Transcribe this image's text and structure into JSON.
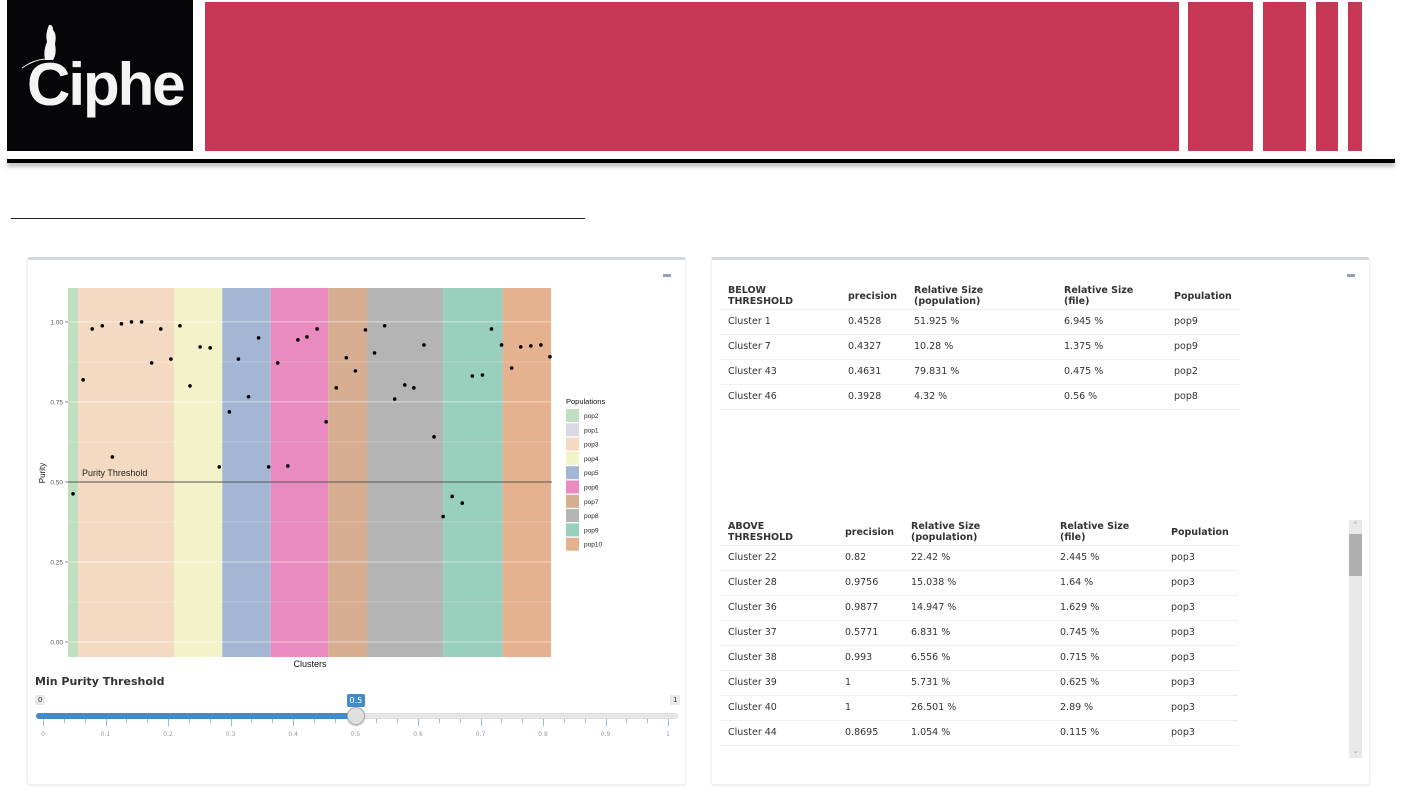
{
  "header": {
    "logo_text": "Ciphe",
    "brand_color": "#c73654",
    "logo_bg": "#060608"
  },
  "left_panel": {
    "collapse_icon": "minus-icon",
    "slider": {
      "label": "Min Purity Threshold",
      "min": 0,
      "max": 1,
      "value": 0.5,
      "min_label": "0",
      "max_label": "1",
      "value_label": "0.5",
      "tick_labels": [
        "0",
        "0.1",
        "0.2",
        "0.3",
        "0.4",
        "0.5",
        "0.6",
        "0.7",
        "0.8",
        "0.9",
        "1"
      ],
      "accent": "#428bca"
    }
  },
  "chart_data": {
    "type": "scatter",
    "title": "",
    "xlabel": "Clusters",
    "ylabel": "Purity",
    "ylim": [
      -0.047,
      1.106
    ],
    "yticks": [
      0.0,
      0.25,
      0.5,
      0.75,
      1.0
    ],
    "ytick_labels": [
      "0.00",
      "0.25",
      "0.50",
      "0.75",
      "1.00"
    ],
    "grid": true,
    "threshold": {
      "value": 0.5,
      "label": "Purity Threshold"
    },
    "legend": {
      "title": "Populations",
      "placement": "right",
      "entries": [
        {
          "name": "pop2",
          "color": "#bfdfbf"
        },
        {
          "name": "pop1",
          "color": "#dcd7e7"
        },
        {
          "name": "pop3",
          "color": "#f4dac3"
        },
        {
          "name": "pop4",
          "color": "#f2f3c9"
        },
        {
          "name": "pop5",
          "color": "#a3b7d4"
        },
        {
          "name": "pop6",
          "color": "#e98ac0"
        },
        {
          "name": "pop7",
          "color": "#d8ae92"
        },
        {
          "name": "pop8",
          "color": "#b4b4b4"
        },
        {
          "name": "pop9",
          "color": "#99cfbd"
        },
        {
          "name": "pop10",
          "color": "#e5b18e"
        }
      ]
    },
    "bands": [
      {
        "population": "pop2",
        "start": 0,
        "end": 1
      },
      {
        "population": "pop3",
        "start": 1,
        "end": 10.5
      },
      {
        "population": "pop4",
        "start": 10.5,
        "end": 15.3
      },
      {
        "population": "pop5",
        "start": 15.3,
        "end": 20.1
      },
      {
        "population": "pop6",
        "start": 20.1,
        "end": 25.8
      },
      {
        "population": "pop7",
        "start": 25.8,
        "end": 29.7
      },
      {
        "population": "pop8",
        "start": 29.7,
        "end": 37.2
      },
      {
        "population": "pop9",
        "start": 37.2,
        "end": 43.1
      },
      {
        "population": "pop10",
        "start": 43.1,
        "end": 47.9
      }
    ],
    "x_count": 48,
    "points": [
      {
        "x": 0.5,
        "y": 0.463
      },
      {
        "x": 1.5,
        "y": 0.819
      },
      {
        "x": 2.4,
        "y": 0.978
      },
      {
        "x": 3.4,
        "y": 0.988
      },
      {
        "x": 4.4,
        "y": 0.578
      },
      {
        "x": 5.3,
        "y": 0.994
      },
      {
        "x": 6.3,
        "y": 1.0
      },
      {
        "x": 7.3,
        "y": 1.0
      },
      {
        "x": 8.3,
        "y": 0.872
      },
      {
        "x": 9.2,
        "y": 0.978
      },
      {
        "x": 10.2,
        "y": 0.884
      },
      {
        "x": 11.1,
        "y": 0.988
      },
      {
        "x": 12.1,
        "y": 0.8
      },
      {
        "x": 13.1,
        "y": 0.922
      },
      {
        "x": 14.1,
        "y": 0.919
      },
      {
        "x": 15.0,
        "y": 0.547
      },
      {
        "x": 16.0,
        "y": 0.719
      },
      {
        "x": 16.9,
        "y": 0.884
      },
      {
        "x": 17.9,
        "y": 0.766
      },
      {
        "x": 18.9,
        "y": 0.95
      },
      {
        "x": 19.9,
        "y": 0.547
      },
      {
        "x": 20.8,
        "y": 0.872
      },
      {
        "x": 21.8,
        "y": 0.55
      },
      {
        "x": 22.8,
        "y": 0.944
      },
      {
        "x": 23.7,
        "y": 0.953
      },
      {
        "x": 24.7,
        "y": 0.978
      },
      {
        "x": 25.6,
        "y": 0.688
      },
      {
        "x": 26.6,
        "y": 0.794
      },
      {
        "x": 27.6,
        "y": 0.888
      },
      {
        "x": 28.5,
        "y": 0.847
      },
      {
        "x": 29.5,
        "y": 0.975
      },
      {
        "x": 30.4,
        "y": 0.903
      },
      {
        "x": 31.4,
        "y": 0.988
      },
      {
        "x": 32.4,
        "y": 0.759
      },
      {
        "x": 33.4,
        "y": 0.803
      },
      {
        "x": 34.3,
        "y": 0.794
      },
      {
        "x": 35.3,
        "y": 0.928
      },
      {
        "x": 36.3,
        "y": 0.641
      },
      {
        "x": 37.2,
        "y": 0.392
      },
      {
        "x": 38.1,
        "y": 0.455
      },
      {
        "x": 39.1,
        "y": 0.434
      },
      {
        "x": 40.1,
        "y": 0.831
      },
      {
        "x": 41.1,
        "y": 0.834
      },
      {
        "x": 42.0,
        "y": 0.978
      },
      {
        "x": 43.0,
        "y": 0.928
      },
      {
        "x": 44.0,
        "y": 0.856
      },
      {
        "x": 44.9,
        "y": 0.922
      },
      {
        "x": 45.9,
        "y": 0.925
      },
      {
        "x": 46.9,
        "y": 0.928
      },
      {
        "x": 47.8,
        "y": 0.891
      }
    ]
  },
  "right_panel": {
    "collapse_icon": "minus-icon",
    "below_table": {
      "columns": [
        "BELOW THRESHOLD",
        "precision",
        "Relative Size (population)",
        "Relative Size (file)",
        "Population"
      ],
      "rows": [
        [
          "Cluster 1",
          "0.4528",
          "51.925 %",
          "6.945 %",
          "pop9"
        ],
        [
          "Cluster 7",
          "0.4327",
          "10.28 %",
          "1.375 %",
          "pop9"
        ],
        [
          "Cluster 43",
          "0.4631",
          "79.831 %",
          "0.475 %",
          "pop2"
        ],
        [
          "Cluster 46",
          "0.3928",
          "4.32 %",
          "0.56 %",
          "pop8"
        ]
      ]
    },
    "above_table": {
      "columns": [
        "ABOVE THRESHOLD",
        "precision",
        "Relative Size (population)",
        "Relative Size (file)",
        "Population"
      ],
      "rows": [
        [
          "Cluster 22",
          "0.82",
          "22.42 %",
          "2.445 %",
          "pop3"
        ],
        [
          "Cluster 28",
          "0.9756",
          "15.038 %",
          "1.64 %",
          "pop3"
        ],
        [
          "Cluster 36",
          "0.9877",
          "14.947 %",
          "1.629 %",
          "pop3"
        ],
        [
          "Cluster 37",
          "0.5771",
          "6.831 %",
          "0.745 %",
          "pop3"
        ],
        [
          "Cluster 38",
          "0.993",
          "6.556 %",
          "0.715 %",
          "pop3"
        ],
        [
          "Cluster 39",
          "1",
          "5.731 %",
          "0.625 %",
          "pop3"
        ],
        [
          "Cluster 40",
          "1",
          "26.501 %",
          "2.89 %",
          "pop3"
        ],
        [
          "Cluster 44",
          "0.8695",
          "1.054 %",
          "0.115 %",
          "pop3"
        ]
      ],
      "scroll_up_icon": "^",
      "scroll_down_icon": "v"
    }
  }
}
